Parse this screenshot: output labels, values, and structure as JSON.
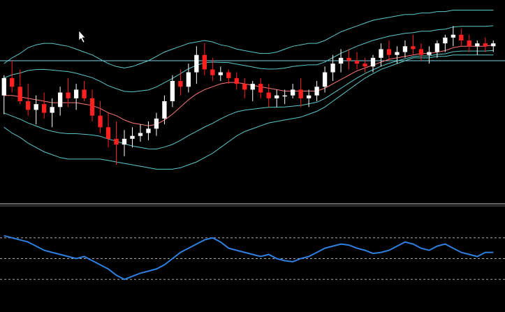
{
  "chart_data": [
    {
      "type": "candlestick",
      "title": "",
      "xlabel": "",
      "ylabel": "",
      "ylim": [
        0,
        100
      ],
      "grid": false,
      "horizontal_lines": [
        82
      ],
      "candles": [
        {
          "o": 58,
          "h": 72,
          "l": 45,
          "c": 70
        },
        {
          "o": 70,
          "h": 82,
          "l": 60,
          "c": 64
        },
        {
          "o": 64,
          "h": 76,
          "l": 52,
          "c": 54
        },
        {
          "o": 54,
          "h": 66,
          "l": 44,
          "c": 48
        },
        {
          "o": 48,
          "h": 58,
          "l": 38,
          "c": 52
        },
        {
          "o": 52,
          "h": 60,
          "l": 42,
          "c": 46
        },
        {
          "o": 46,
          "h": 56,
          "l": 36,
          "c": 50
        },
        {
          "o": 50,
          "h": 64,
          "l": 44,
          "c": 60
        },
        {
          "o": 60,
          "h": 70,
          "l": 50,
          "c": 56
        },
        {
          "o": 56,
          "h": 66,
          "l": 48,
          "c": 62
        },
        {
          "o": 62,
          "h": 68,
          "l": 54,
          "c": 56
        },
        {
          "o": 56,
          "h": 62,
          "l": 40,
          "c": 44
        },
        {
          "o": 44,
          "h": 54,
          "l": 32,
          "c": 36
        },
        {
          "o": 36,
          "h": 46,
          "l": 22,
          "c": 28
        },
        {
          "o": 28,
          "h": 40,
          "l": 10,
          "c": 24
        },
        {
          "o": 24,
          "h": 34,
          "l": 16,
          "c": 28
        },
        {
          "o": 28,
          "h": 36,
          "l": 22,
          "c": 30
        },
        {
          "o": 30,
          "h": 38,
          "l": 26,
          "c": 32
        },
        {
          "o": 32,
          "h": 40,
          "l": 27,
          "c": 35
        },
        {
          "o": 35,
          "h": 46,
          "l": 30,
          "c": 42
        },
        {
          "o": 42,
          "h": 58,
          "l": 38,
          "c": 54
        },
        {
          "o": 54,
          "h": 72,
          "l": 50,
          "c": 68
        },
        {
          "o": 68,
          "h": 76,
          "l": 58,
          "c": 64
        },
        {
          "o": 64,
          "h": 80,
          "l": 60,
          "c": 74
        },
        {
          "o": 74,
          "h": 92,
          "l": 66,
          "c": 86
        },
        {
          "o": 86,
          "h": 94,
          "l": 72,
          "c": 76
        },
        {
          "o": 76,
          "h": 84,
          "l": 68,
          "c": 72
        },
        {
          "o": 72,
          "h": 78,
          "l": 68,
          "c": 74
        },
        {
          "o": 74,
          "h": 76,
          "l": 66,
          "c": 70
        },
        {
          "o": 70,
          "h": 74,
          "l": 62,
          "c": 66
        },
        {
          "o": 66,
          "h": 70,
          "l": 56,
          "c": 62
        },
        {
          "o": 62,
          "h": 68,
          "l": 54,
          "c": 66
        },
        {
          "o": 66,
          "h": 70,
          "l": 56,
          "c": 60
        },
        {
          "o": 60,
          "h": 66,
          "l": 50,
          "c": 56
        },
        {
          "o": 56,
          "h": 62,
          "l": 50,
          "c": 58
        },
        {
          "o": 58,
          "h": 62,
          "l": 52,
          "c": 58
        },
        {
          "o": 58,
          "h": 66,
          "l": 56,
          "c": 62
        },
        {
          "o": 62,
          "h": 70,
          "l": 50,
          "c": 56
        },
        {
          "o": 56,
          "h": 62,
          "l": 50,
          "c": 58
        },
        {
          "o": 58,
          "h": 68,
          "l": 54,
          "c": 64
        },
        {
          "o": 64,
          "h": 78,
          "l": 60,
          "c": 74
        },
        {
          "o": 74,
          "h": 86,
          "l": 68,
          "c": 80
        },
        {
          "o": 80,
          "h": 90,
          "l": 74,
          "c": 84
        },
        {
          "o": 84,
          "h": 90,
          "l": 76,
          "c": 82
        },
        {
          "o": 82,
          "h": 88,
          "l": 76,
          "c": 80
        },
        {
          "o": 80,
          "h": 84,
          "l": 74,
          "c": 78
        },
        {
          "o": 78,
          "h": 86,
          "l": 74,
          "c": 84
        },
        {
          "o": 84,
          "h": 94,
          "l": 78,
          "c": 90
        },
        {
          "o": 90,
          "h": 96,
          "l": 82,
          "c": 86
        },
        {
          "o": 86,
          "h": 92,
          "l": 80,
          "c": 88
        },
        {
          "o": 88,
          "h": 96,
          "l": 84,
          "c": 92
        },
        {
          "o": 92,
          "h": 100,
          "l": 86,
          "c": 90
        },
        {
          "o": 90,
          "h": 94,
          "l": 82,
          "c": 86
        },
        {
          "o": 86,
          "h": 92,
          "l": 80,
          "c": 88
        },
        {
          "o": 88,
          "h": 96,
          "l": 84,
          "c": 94
        },
        {
          "o": 94,
          "h": 100,
          "l": 88,
          "c": 98
        },
        {
          "o": 98,
          "h": 106,
          "l": 92,
          "c": 100
        },
        {
          "o": 100,
          "h": 104,
          "l": 92,
          "c": 96
        },
        {
          "o": 96,
          "h": 100,
          "l": 88,
          "c": 92
        },
        {
          "o": 92,
          "h": 96,
          "l": 86,
          "c": 94
        },
        {
          "o": 94,
          "h": 98,
          "l": 88,
          "c": 92
        },
        {
          "o": 92,
          "h": 96,
          "l": 88,
          "c": 94
        }
      ],
      "bands": {
        "middle": [
          58,
          58,
          57,
          56,
          55,
          54,
          53,
          53,
          53,
          53,
          52,
          51,
          49,
          46,
          44,
          41,
          39,
          38,
          37,
          38,
          41,
          45,
          50,
          55,
          59,
          62,
          64,
          66,
          67,
          67,
          66,
          65,
          64,
          63,
          62,
          61,
          61,
          61,
          61,
          61,
          63,
          66,
          69,
          72,
          75,
          77,
          79,
          81,
          83,
          84,
          85,
          86,
          87,
          87,
          88,
          89,
          91,
          92,
          92,
          92,
          92,
          93
        ],
        "upper": [
          80,
          84,
          87,
          91,
          93,
          94,
          94,
          93,
          92,
          90,
          88,
          86,
          83,
          80,
          78,
          77,
          78,
          80,
          82,
          85,
          88,
          90,
          92,
          94,
          95,
          96,
          95,
          93,
          92,
          90,
          89,
          88,
          87,
          87,
          88,
          90,
          92,
          93,
          94,
          94,
          96,
          99,
          102,
          104,
          106,
          108,
          110,
          111,
          112,
          113,
          114,
          114,
          115,
          115,
          116,
          116,
          117,
          117,
          117,
          117,
          117,
          117
        ],
        "lower": [
          36,
          32,
          29,
          25,
          22,
          19,
          17,
          15,
          14,
          14,
          14,
          14,
          14,
          13,
          12,
          11,
          10,
          9,
          8,
          7,
          7,
          7,
          8,
          10,
          12,
          15,
          18,
          22,
          26,
          30,
          33,
          35,
          37,
          39,
          40,
          41,
          42,
          43,
          45,
          47,
          50,
          54,
          58,
          62,
          66,
          70,
          73,
          76,
          78,
          80,
          82,
          84,
          84,
          84,
          85,
          85,
          86,
          86,
          86,
          86,
          86,
          86
        ]
      },
      "rsi": {
        "ylim": [
          0,
          100
        ],
        "levels": [
          70,
          50,
          30
        ],
        "values": [
          72,
          70,
          68,
          66,
          62,
          58,
          56,
          54,
          52,
          50,
          52,
          48,
          44,
          40,
          34,
          30,
          33,
          36,
          38,
          40,
          44,
          50,
          56,
          60,
          64,
          68,
          70,
          66,
          60,
          58,
          56,
          54,
          52,
          54,
          50,
          48,
          47,
          50,
          52,
          56,
          60,
          62,
          64,
          63,
          60,
          58,
          55,
          56,
          58,
          62,
          66,
          64,
          60,
          58,
          62,
          64,
          60,
          56,
          54,
          52,
          56,
          56
        ]
      },
      "colors": {
        "background": "#000000",
        "band": "#5ec8c8",
        "candle_up": "#ffffff",
        "candle_down": "#ff2020",
        "moving_average": "#ff7777",
        "rsi_line": "#2f7fe0",
        "level_line": "#aaaaaa",
        "horizontal_line": "#7fd4e6",
        "separator": "#cccccc"
      }
    }
  ]
}
